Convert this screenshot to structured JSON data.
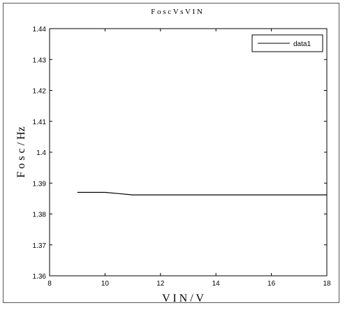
{
  "chart_data": {
    "type": "line",
    "title": "F o s c   V s   V I N",
    "xlabel": "V I N / V",
    "ylabel": "F o s c / Hz",
    "xlim": [
      8,
      18
    ],
    "ylim": [
      1.36,
      1.44
    ],
    "xticks": [
      "8",
      "10",
      "12",
      "14",
      "16",
      "18"
    ],
    "yticks": [
      "1.36",
      "1.37",
      "1.38",
      "1.39",
      "1.4",
      "1.41",
      "1.42",
      "1.43",
      "1.44"
    ],
    "grid": false,
    "legend_position": "top-right",
    "series": [
      {
        "name": "data1",
        "color": "#000000",
        "x": [
          9,
          10,
          10.5,
          11,
          12,
          14,
          16,
          18
        ],
        "y": [
          1.387,
          1.387,
          1.3866,
          1.3862,
          1.3862,
          1.3862,
          1.3862,
          1.3862
        ]
      }
    ]
  }
}
